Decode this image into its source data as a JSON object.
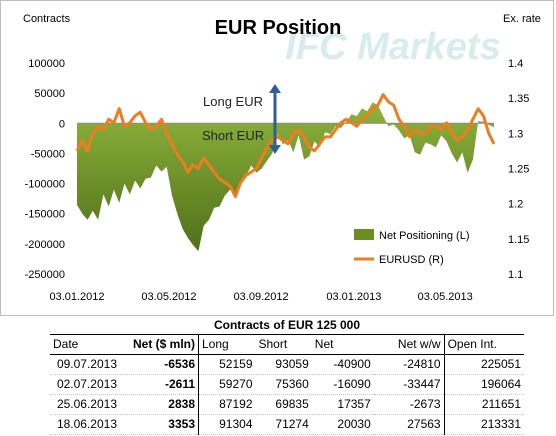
{
  "chart_data": {
    "type": "area+line",
    "title": "EUR Position",
    "ylabel_left": "Contracts",
    "ylabel_right": "Ex. rate",
    "watermark": "IFC Markets",
    "annotations": [
      "Long EUR",
      "Short EUR"
    ],
    "ylim_left": [
      -250000,
      100000
    ],
    "ylim_right": [
      1.1,
      1.4
    ],
    "yticks_left": [
      "100000",
      "50000",
      "0",
      "-50000",
      "-100000",
      "-150000",
      "-200000",
      "-250000"
    ],
    "yticks_left_values": [
      100000,
      50000,
      0,
      -50000,
      -100000,
      -150000,
      -200000,
      -250000
    ],
    "yticks_right": [
      "1.4",
      "1.35",
      "1.3",
      "1.25",
      "1.2",
      "1.15",
      "1.1"
    ],
    "yticks_right_values": [
      1.4,
      1.35,
      1.3,
      1.25,
      1.2,
      1.15,
      1.1
    ],
    "xticks": [
      "03.01.2012",
      "03.05.2012",
      "03.09.2012",
      "03.01.2013",
      "03.05.2013"
    ],
    "x_start": "2012-01-03",
    "x_end": "2013-07-09",
    "colors": {
      "area": "#6b8e23",
      "line": "#ee7d22",
      "arrow": "#2f5f96"
    },
    "series": [
      {
        "name": "Net Positioning (L)",
        "kind": "area",
        "axis": "left",
        "x": [
          "2012-01-03",
          "2012-01-10",
          "2012-01-17",
          "2012-01-24",
          "2012-01-31",
          "2012-02-07",
          "2012-02-14",
          "2012-02-21",
          "2012-02-28",
          "2012-03-06",
          "2012-03-13",
          "2012-03-20",
          "2012-03-27",
          "2012-04-03",
          "2012-04-10",
          "2012-04-17",
          "2012-04-24",
          "2012-05-01",
          "2012-05-08",
          "2012-05-15",
          "2012-05-22",
          "2012-05-29",
          "2012-06-05",
          "2012-06-12",
          "2012-06-19",
          "2012-06-26",
          "2012-07-03",
          "2012-07-10",
          "2012-07-17",
          "2012-07-24",
          "2012-07-31",
          "2012-08-07",
          "2012-08-14",
          "2012-08-21",
          "2012-08-28",
          "2012-09-04",
          "2012-09-11",
          "2012-09-18",
          "2012-09-25",
          "2012-10-02",
          "2012-10-09",
          "2012-10-16",
          "2012-10-23",
          "2012-10-30",
          "2012-11-06",
          "2012-11-13",
          "2012-11-20",
          "2012-11-27",
          "2012-12-04",
          "2012-12-11",
          "2012-12-18",
          "2012-12-25",
          "2013-01-01",
          "2013-01-08",
          "2013-01-15",
          "2013-01-22",
          "2013-01-29",
          "2013-02-05",
          "2013-02-12",
          "2013-02-19",
          "2013-02-26",
          "2013-03-05",
          "2013-03-12",
          "2013-03-19",
          "2013-03-26",
          "2013-04-02",
          "2013-04-09",
          "2013-04-16",
          "2013-04-23",
          "2013-04-30",
          "2013-05-07",
          "2013-05-14",
          "2013-05-21",
          "2013-05-28",
          "2013-06-04",
          "2013-06-11",
          "2013-06-18",
          "2013-06-25",
          "2013-07-02",
          "2013-07-09"
        ],
        "values": [
          -135000,
          -150000,
          -160000,
          -145000,
          -160000,
          -118000,
          -138000,
          -110000,
          -132000,
          -100000,
          -118000,
          -95000,
          -108000,
          -92000,
          -90000,
          -70000,
          -80000,
          -72000,
          -120000,
          -150000,
          -175000,
          -190000,
          -202000,
          -212000,
          -170000,
          -160000,
          -140000,
          -138000,
          -120000,
          -110000,
          -118000,
          -98000,
          -88000,
          -70000,
          -82000,
          -75000,
          -62000,
          -50000,
          -18000,
          -35000,
          -28000,
          -48000,
          -20000,
          -60000,
          -55000,
          -30000,
          -40000,
          -15000,
          -18000,
          -5000,
          -8000,
          2000,
          15000,
          12000,
          25000,
          20000,
          35000,
          30000,
          12000,
          -5000,
          -2000,
          -12000,
          -25000,
          -20000,
          -48000,
          -52000,
          -32000,
          -35000,
          -40000,
          -20000,
          -30000,
          -50000,
          -65000,
          -48000,
          -82000,
          -60000,
          3353,
          2838,
          -2611,
          -6536
        ]
      },
      {
        "name": "EURUSD (R)",
        "kind": "line",
        "axis": "right",
        "x": [
          "2012-01-03",
          "2012-01-10",
          "2012-01-17",
          "2012-01-24",
          "2012-01-31",
          "2012-02-07",
          "2012-02-14",
          "2012-02-21",
          "2012-02-28",
          "2012-03-06",
          "2012-03-13",
          "2012-03-20",
          "2012-03-27",
          "2012-04-03",
          "2012-04-10",
          "2012-04-17",
          "2012-04-24",
          "2012-05-01",
          "2012-05-08",
          "2012-05-15",
          "2012-05-22",
          "2012-05-29",
          "2012-06-05",
          "2012-06-12",
          "2012-06-19",
          "2012-06-26",
          "2012-07-03",
          "2012-07-10",
          "2012-07-17",
          "2012-07-24",
          "2012-07-31",
          "2012-08-07",
          "2012-08-14",
          "2012-08-21",
          "2012-08-28",
          "2012-09-04",
          "2012-09-11",
          "2012-09-18",
          "2012-09-25",
          "2012-10-02",
          "2012-10-09",
          "2012-10-16",
          "2012-10-23",
          "2012-10-30",
          "2012-11-06",
          "2012-11-13",
          "2012-11-20",
          "2012-11-27",
          "2012-12-04",
          "2012-12-11",
          "2012-12-18",
          "2012-12-25",
          "2013-01-01",
          "2013-01-08",
          "2013-01-15",
          "2013-01-22",
          "2013-01-29",
          "2013-02-05",
          "2013-02-12",
          "2013-02-19",
          "2013-02-26",
          "2013-03-05",
          "2013-03-12",
          "2013-03-19",
          "2013-03-26",
          "2013-04-02",
          "2013-04-09",
          "2013-04-16",
          "2013-04-23",
          "2013-04-30",
          "2013-05-07",
          "2013-05-14",
          "2013-05-21",
          "2013-05-28",
          "2013-06-04",
          "2013-06-11",
          "2013-06-18",
          "2013-06-25",
          "2013-07-02",
          "2013-07-09"
        ],
        "values": [
          1.275,
          1.29,
          1.275,
          1.3,
          1.31,
          1.305,
          1.32,
          1.315,
          1.335,
          1.31,
          1.315,
          1.325,
          1.33,
          1.315,
          1.305,
          1.31,
          1.32,
          1.3,
          1.285,
          1.27,
          1.26,
          1.245,
          1.255,
          1.25,
          1.265,
          1.255,
          1.245,
          1.235,
          1.23,
          1.225,
          1.21,
          1.23,
          1.24,
          1.245,
          1.25,
          1.265,
          1.28,
          1.29,
          1.295,
          1.29,
          1.285,
          1.3,
          1.305,
          1.295,
          1.28,
          1.275,
          1.285,
          1.295,
          1.295,
          1.305,
          1.315,
          1.32,
          1.315,
          1.31,
          1.32,
          1.325,
          1.335,
          1.34,
          1.355,
          1.345,
          1.34,
          1.32,
          1.31,
          1.295,
          1.305,
          1.3,
          1.3,
          1.31,
          1.31,
          1.305,
          1.315,
          1.3,
          1.29,
          1.295,
          1.305,
          1.32,
          1.335,
          1.325,
          1.3,
          1.285
        ]
      }
    ],
    "legend": {
      "placement": "bottom-right",
      "entries": [
        "Net Positioning (L)",
        "EURUSD (R)"
      ]
    }
  },
  "table": {
    "title": "Contracts of EUR 125 000",
    "headers": [
      "Date",
      "Net ($ mln)",
      "Long",
      "Short",
      "Net",
      "Net w/w",
      "Open Int."
    ],
    "rows": [
      [
        "09.07.2013",
        "-6536",
        "52159",
        "93059",
        "-40900",
        "-24810",
        "225051"
      ],
      [
        "02.07.2013",
        "-2611",
        "59270",
        "75360",
        "-16090",
        "-33447",
        "196064"
      ],
      [
        "25.06.2013",
        "2838",
        "87192",
        "69835",
        "17357",
        "-2673",
        "211651"
      ],
      [
        "18.06.2013",
        "3353",
        "91304",
        "71274",
        "20030",
        "27563",
        "213331"
      ]
    ]
  }
}
